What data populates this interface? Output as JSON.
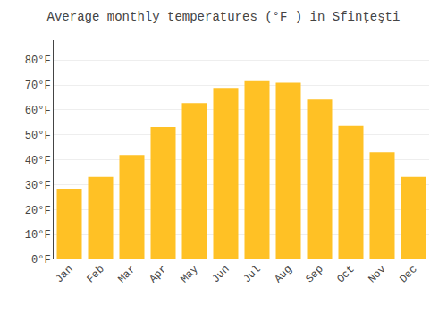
{
  "chart_data": {
    "type": "bar",
    "title": "Average monthly temperatures (°F ) in Sfinţeşti",
    "categories": [
      "Jan",
      "Feb",
      "Mar",
      "Apr",
      "May",
      "Jun",
      "Jul",
      "Aug",
      "Sep",
      "Oct",
      "Nov",
      "Dec"
    ],
    "values": [
      28.4,
      33.1,
      41.9,
      53.2,
      62.8,
      68.9,
      71.6,
      70.9,
      64.2,
      53.6,
      43.0,
      33.1
    ],
    "color": "#FFC125",
    "ylim": [
      0,
      88
    ],
    "yticks": [
      {
        "value": 0,
        "label": "0°F"
      },
      {
        "value": 10,
        "label": "10°F"
      },
      {
        "value": 20,
        "label": "20°F"
      },
      {
        "value": 30,
        "label": "30°F"
      },
      {
        "value": 40,
        "label": "40°F"
      },
      {
        "value": 50,
        "label": "50°F"
      },
      {
        "value": 60,
        "label": "60°F"
      },
      {
        "value": 70,
        "label": "70°F"
      },
      {
        "value": 80,
        "label": "80°F"
      }
    ],
    "grid": true
  }
}
